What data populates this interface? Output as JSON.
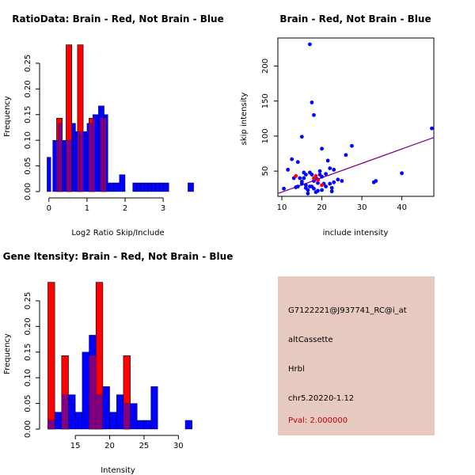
{
  "colors": {
    "red": "#ff0000",
    "blue": "#0000ff",
    "overlap": "#800080",
    "info_bg": "#e6c9c0",
    "pval": "#c00000"
  },
  "info": {
    "probe_id": "G7122221@J937741_RC@i_at",
    "event_type": "altCassette",
    "gene": "Hrbl",
    "location": "chr5.20220-1.12",
    "pval": "Pval: 2.000000"
  },
  "chart_data": [
    {
      "type": "histogram",
      "title": "RatioData: Brain - Red, Not Brain - Blue",
      "xlabel": "Log2 Ratio Skip/Include",
      "ylabel": "Frequency",
      "xlim": [
        -0.1,
        3.85
      ],
      "ylim": [
        0,
        0.29
      ],
      "x_ticks": [
        0,
        1,
        2,
        3
      ],
      "x_tick_labels": [
        "0",
        "1",
        "2",
        "3"
      ],
      "y_ticks": [
        0,
        0.05,
        0.1,
        0.15,
        0.2,
        0.25
      ],
      "y_tick_labels": [
        "0.00",
        "0.05",
        "0.10",
        "0.15",
        "0.20",
        "0.25"
      ],
      "series": [
        {
          "name": "Not Brain",
          "color": "blue",
          "bins": [
            [
              -0.05,
              0.05,
              0.067
            ],
            [
              0.1,
              0.25,
              0.1
            ],
            [
              0.25,
              0.35,
              0.133
            ],
            [
              0.35,
              0.45,
              0.1
            ],
            [
              0.45,
              0.6,
              0.1
            ],
            [
              0.6,
              0.7,
              0.133
            ],
            [
              0.7,
              0.8,
              0.117
            ],
            [
              0.8,
              1.0,
              0.117
            ],
            [
              1.0,
              1.15,
              0.133
            ],
            [
              1.15,
              1.3,
              0.15
            ],
            [
              1.3,
              1.45,
              0.167
            ],
            [
              1.45,
              1.55,
              0.15
            ],
            [
              1.55,
              1.7,
              0.017
            ],
            [
              1.7,
              1.85,
              0.017
            ],
            [
              1.85,
              2.0,
              0.033
            ],
            [
              2.2,
              2.3,
              0.017
            ],
            [
              2.3,
              2.4,
              0.017
            ],
            [
              2.4,
              2.5,
              0.017
            ],
            [
              2.5,
              2.6,
              0.017
            ],
            [
              2.6,
              2.7,
              0.017
            ],
            [
              2.7,
              2.8,
              0.017
            ],
            [
              2.8,
              2.9,
              0.017
            ],
            [
              2.9,
              3.0,
              0.017
            ],
            [
              3.0,
              3.15,
              0.017
            ],
            [
              3.65,
              3.8,
              0.017
            ]
          ]
        },
        {
          "name": "Brain",
          "color": "red",
          "bins": [
            [
              0.2,
              0.35,
              0.143
            ],
            [
              0.45,
              0.6,
              0.286
            ],
            [
              0.75,
              0.9,
              0.286
            ],
            [
              1.05,
              1.2,
              0.143
            ],
            [
              1.35,
              1.5,
              0.143
            ]
          ]
        }
      ]
    },
    {
      "type": "scatter",
      "title": "Brain - Red, Not Brain - Blue",
      "xlabel": "include intensity",
      "ylabel": "skip intensity",
      "xlim": [
        9,
        48
      ],
      "ylim": [
        14,
        240
      ],
      "x_ticks": [
        10,
        20,
        30,
        40
      ],
      "x_tick_labels": [
        "10",
        "20",
        "30",
        "40"
      ],
      "y_ticks": [
        50,
        100,
        150,
        200
      ],
      "y_tick_labels": [
        "50",
        "100",
        "150",
        "200"
      ],
      "fit_line": {
        "x": [
          9,
          48
        ],
        "y": [
          18,
          98
        ]
      },
      "series": [
        {
          "name": "Not Brain",
          "color": "blue",
          "points": [
            [
              10.5,
              25
            ],
            [
              11.5,
              52
            ],
            [
              12.5,
              67
            ],
            [
              13,
              40
            ],
            [
              13.5,
              27
            ],
            [
              14,
              28
            ],
            [
              14,
              63
            ],
            [
              14.5,
              40
            ],
            [
              15,
              99
            ],
            [
              15,
              35
            ],
            [
              15,
              32
            ],
            [
              15.5,
              48
            ],
            [
              15.5,
              40
            ],
            [
              16,
              45
            ],
            [
              16,
              26
            ],
            [
              16,
              30
            ],
            [
              16.5,
              18
            ],
            [
              16.5,
              23
            ],
            [
              17,
              48
            ],
            [
              17,
              28
            ],
            [
              17,
              231
            ],
            [
              17.5,
              28
            ],
            [
              17.5,
              148
            ],
            [
              17.5,
              45
            ],
            [
              18,
              130
            ],
            [
              18,
              36
            ],
            [
              18,
              25
            ],
            [
              18.5,
              40
            ],
            [
              18.5,
              20
            ],
            [
              19,
              33
            ],
            [
              19,
              22
            ],
            [
              19,
              38
            ],
            [
              19.5,
              50
            ],
            [
              19.5,
              45
            ],
            [
              20,
              42
            ],
            [
              20,
              23
            ],
            [
              20,
              82
            ],
            [
              20.5,
              32
            ],
            [
              21,
              46
            ],
            [
              21,
              28
            ],
            [
              21.5,
              65
            ],
            [
              22,
              54
            ],
            [
              22,
              32
            ],
            [
              22.5,
              26
            ],
            [
              22.5,
              21
            ],
            [
              23,
              34
            ],
            [
              23,
              52
            ],
            [
              24,
              38
            ],
            [
              25,
              36
            ],
            [
              26,
              73
            ],
            [
              27.5,
              86
            ],
            [
              33,
              34
            ],
            [
              33.5,
              36
            ],
            [
              40,
              47
            ],
            [
              47.5,
              111
            ]
          ]
        },
        {
          "name": "Brain",
          "color": "red",
          "points": [
            [
              13.5,
              43
            ],
            [
              18,
              40
            ],
            [
              18.5,
              43
            ],
            [
              19,
              37
            ],
            [
              20,
              30
            ]
          ]
        }
      ]
    },
    {
      "type": "histogram",
      "title": "Gene Itensity: Brain - Red, Not Brain - Blue",
      "xlabel": "Intensity",
      "ylabel": "Frequency",
      "xlim": [
        10.6,
        32.5
      ],
      "ylim": [
        0,
        0.29
      ],
      "x_ticks": [
        15,
        20,
        25,
        30
      ],
      "x_tick_labels": [
        "15",
        "20",
        "25",
        "30"
      ],
      "y_ticks": [
        0,
        0.05,
        0.1,
        0.15,
        0.2,
        0.25
      ],
      "y_tick_labels": [
        "0.00",
        "0.05",
        "0.10",
        "0.15",
        "0.20",
        "0.25"
      ],
      "series": [
        {
          "name": "Not Brain",
          "color": "blue",
          "bins": [
            [
              11,
              12,
              0.017
            ],
            [
              12,
              13,
              0.033
            ],
            [
              13,
              14,
              0.067
            ],
            [
              14,
              15,
              0.067
            ],
            [
              15,
              16,
              0.033
            ],
            [
              16,
              17,
              0.15
            ],
            [
              17,
              18,
              0.183
            ],
            [
              18,
              19,
              0.067
            ],
            [
              19,
              20,
              0.083
            ],
            [
              20,
              21,
              0.033
            ],
            [
              21,
              22,
              0.067
            ],
            [
              22,
              23,
              0.05
            ],
            [
              23,
              24,
              0.05
            ],
            [
              24,
              25,
              0.017
            ],
            [
              25,
              26,
              0.017
            ],
            [
              26,
              27,
              0.083
            ],
            [
              31,
              32,
              0.017
            ]
          ]
        },
        {
          "name": "Brain",
          "color": "red",
          "bins": [
            [
              11,
              12,
              0.286
            ],
            [
              13,
              14,
              0.143
            ],
            [
              17,
              18,
              0.143
            ],
            [
              18,
              19,
              0.286
            ],
            [
              22,
              23,
              0.143
            ]
          ]
        }
      ]
    }
  ]
}
